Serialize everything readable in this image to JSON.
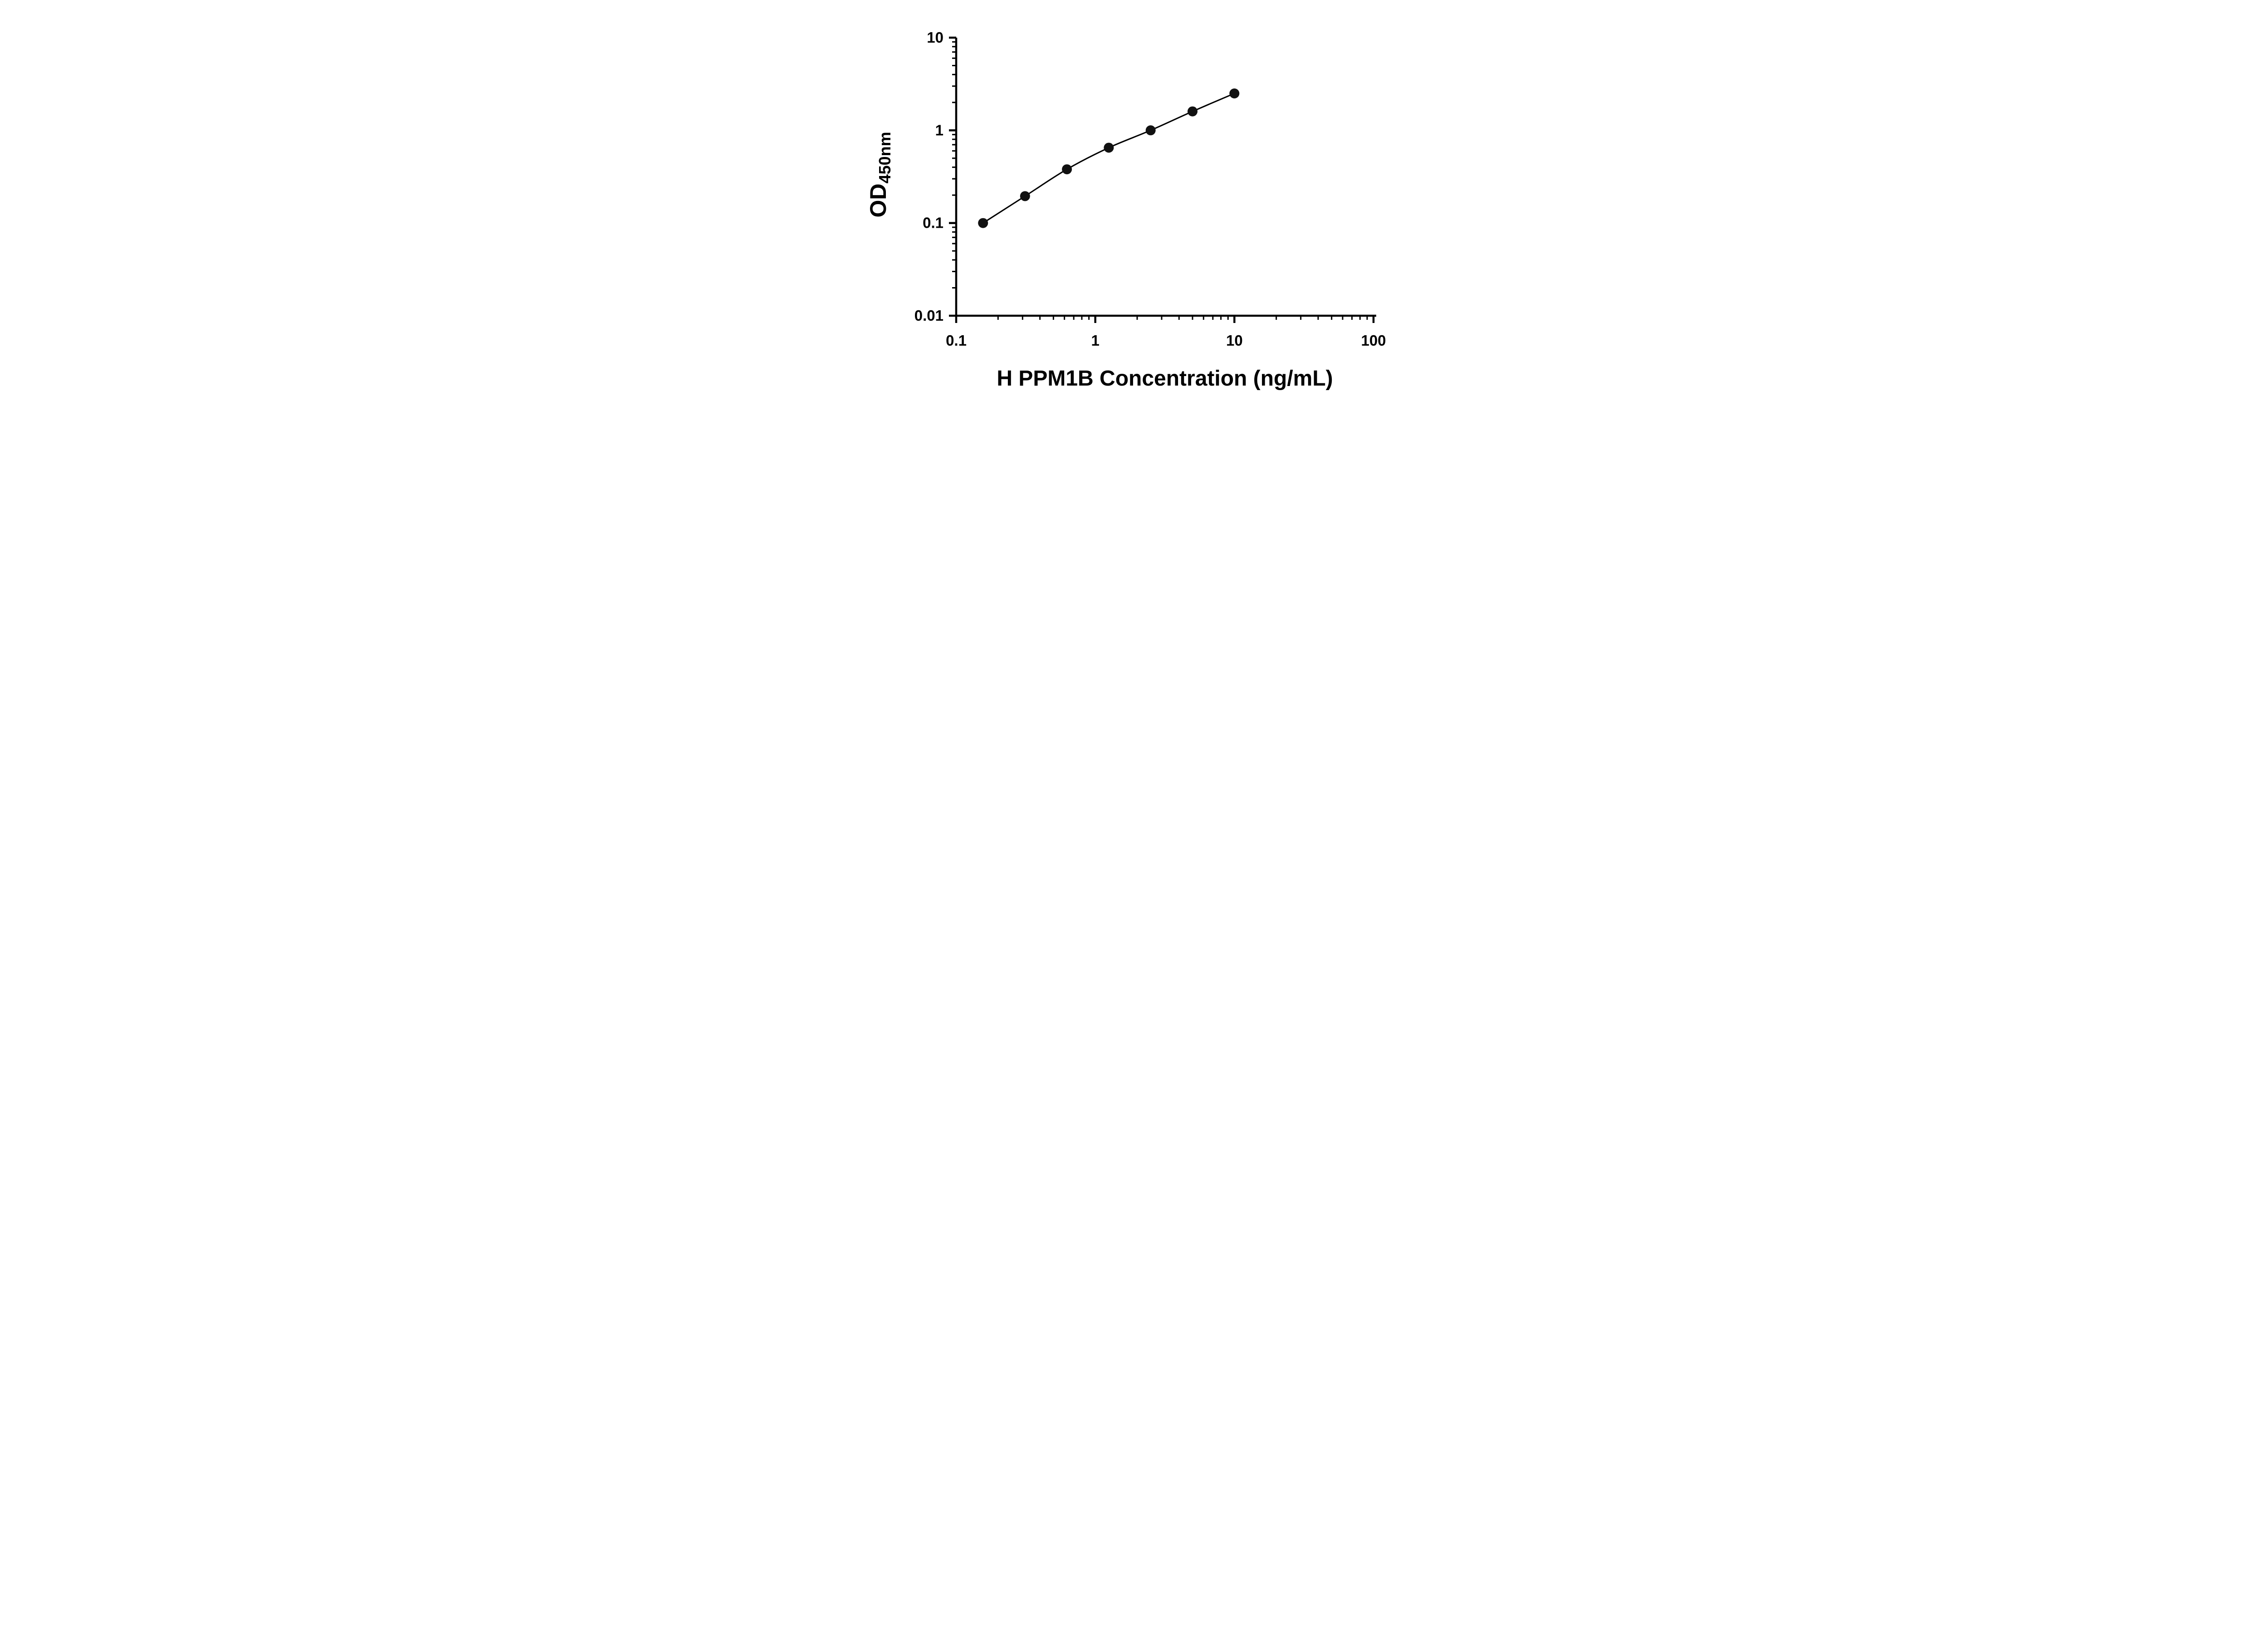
{
  "figure": {
    "background_color": "#ffffff",
    "description": "ELISA standard curve, log-log scatter plot with fitted curve"
  },
  "chart_data": {
    "type": "scatter",
    "subtype": "log-log standard curve with fitted line",
    "title": "",
    "xlabel": "H PPM1B Concentration (ng/mL)",
    "ylabel_main": "OD",
    "ylabel_sub": "450nm",
    "x": [
      0.156,
      0.3125,
      0.625,
      1.25,
      2.5,
      5,
      10
    ],
    "y": [
      0.1,
      0.195,
      0.38,
      0.65,
      1.0,
      1.6,
      2.5
    ],
    "x_scale": "log10",
    "y_scale": "log10",
    "xlim": [
      0.1,
      100
    ],
    "ylim": [
      0.01,
      10
    ],
    "x_ticks": [
      {
        "value": 0.1,
        "label": "0.1"
      },
      {
        "value": 1,
        "label": "1"
      },
      {
        "value": 10,
        "label": "10"
      },
      {
        "value": 100,
        "label": "100"
      }
    ],
    "y_ticks": [
      {
        "value": 0.01,
        "label": "0.01"
      },
      {
        "value": 0.1,
        "label": "0.1"
      },
      {
        "value": 1,
        "label": "1"
      },
      {
        "value": 10,
        "label": "10"
      }
    ],
    "minor_log_ticks": true,
    "grid": false,
    "legend": false,
    "axis_color": "#000000",
    "line_color": "#000000",
    "marker_color": "#111111",
    "marker_shape": "circle"
  }
}
